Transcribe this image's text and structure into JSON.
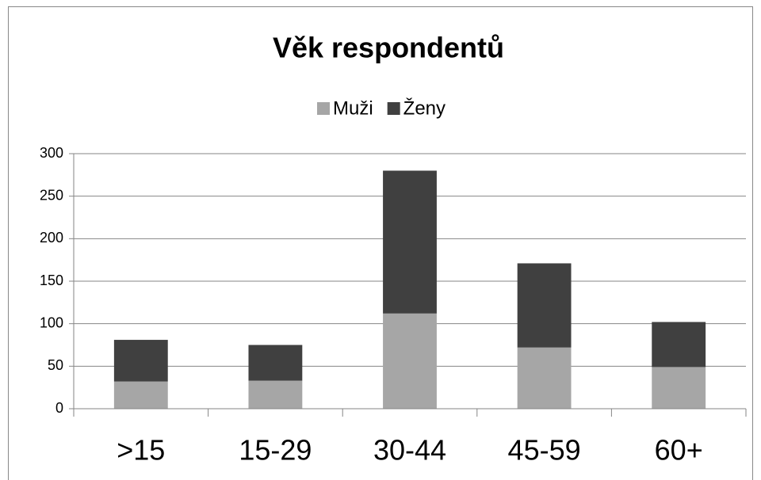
{
  "chart_data": {
    "type": "stacked_bar",
    "title": "Věk respondentů",
    "categories": [
      ">15",
      "15-29",
      "30-44",
      "45-59",
      "60+"
    ],
    "series": [
      {
        "name": "Muži",
        "color": "#a6a6a6",
        "values": [
          32,
          33,
          112,
          72,
          49
        ]
      },
      {
        "name": "Ženy",
        "color": "#404040",
        "values": [
          49,
          42,
          168,
          99,
          53
        ]
      }
    ],
    "ylim": [
      0,
      300
    ],
    "yticks": [
      0,
      50,
      100,
      150,
      200,
      250,
      300
    ],
    "grid": true,
    "legend": "top"
  }
}
